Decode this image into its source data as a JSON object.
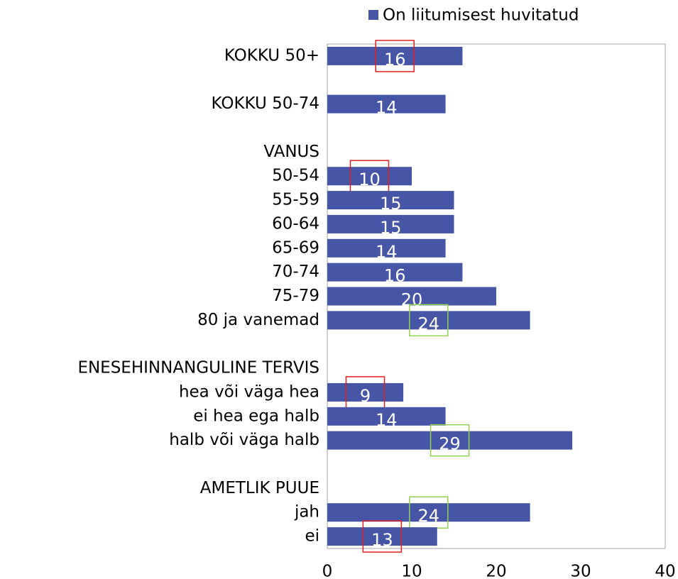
{
  "chart_data": {
    "type": "hbar",
    "categories": [
      "KOKKU 50+",
      null,
      "KOKKU 50-74",
      null,
      "VANUS",
      "50-54",
      "55-59",
      "60-64",
      "65-69",
      "70-74",
      "75-79",
      "80 ja vanemad",
      null,
      "ENESEHINNANGULINE TERVIS",
      "hea või väga hea",
      "ei hea ega halb",
      "halb või väga halb",
      null,
      "AMETLIK PUUE",
      "jah",
      "ei"
    ],
    "series": [
      {
        "name": "On liitumisest huvitatud",
        "color": "#4655a5",
        "values": [
          16,
          null,
          14,
          null,
          null,
          10,
          15,
          15,
          14,
          16,
          20,
          24,
          null,
          null,
          9,
          14,
          29,
          null,
          null,
          24,
          13
        ]
      }
    ],
    "box_colors": [
      "#e02020",
      null,
      null,
      null,
      null,
      "#e02020",
      null,
      null,
      null,
      null,
      null,
      "#92d050",
      null,
      null,
      "#e02020",
      null,
      "#92d050",
      null,
      null,
      "#92d050",
      "#e02020"
    ],
    "xlim": [
      0,
      40
    ],
    "xticks": [
      0,
      10,
      20,
      30,
      40
    ],
    "legend": "top"
  }
}
